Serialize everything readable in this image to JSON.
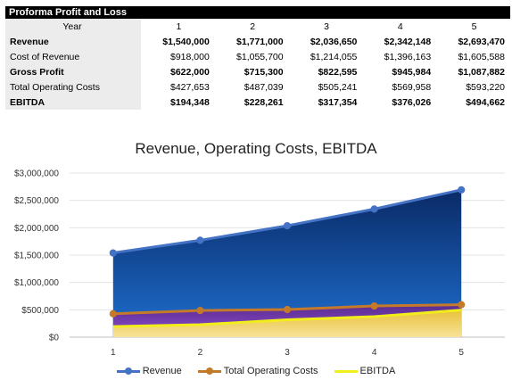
{
  "table": {
    "title": "Proforma Profit and Loss",
    "header_label": "Year",
    "years": [
      "1",
      "2",
      "3",
      "4",
      "5"
    ],
    "rows": [
      {
        "label": "Revenue",
        "bold": true,
        "values": [
          "$1,540,000",
          "$1,771,000",
          "$2,036,650",
          "$2,342,148",
          "$2,693,470"
        ]
      },
      {
        "label": "Cost of Revenue",
        "bold": false,
        "values": [
          "$918,000",
          "$1,055,700",
          "$1,214,055",
          "$1,396,163",
          "$1,605,588"
        ]
      },
      {
        "label": "Gross Profit",
        "bold": true,
        "values": [
          "$622,000",
          "$715,300",
          "$822,595",
          "$945,984",
          "$1,087,882"
        ]
      },
      {
        "label": "Total Operating Costs",
        "bold": false,
        "values": [
          "$427,653",
          "$487,039",
          "$505,241",
          "$569,958",
          "$593,220"
        ]
      },
      {
        "label": "EBITDA",
        "bold": true,
        "values": [
          "$194,348",
          "$228,261",
          "$317,354",
          "$376,026",
          "$494,662"
        ]
      }
    ]
  },
  "chart_data": {
    "type": "area",
    "title": "Revenue, Operating Costs, EBITDA",
    "xlabel": "",
    "ylabel": "",
    "categories": [
      "1",
      "2",
      "3",
      "4",
      "5"
    ],
    "ylim": [
      0,
      3000000
    ],
    "yticks": [
      0,
      500000,
      1000000,
      1500000,
      2000000,
      2500000,
      3000000
    ],
    "ytick_labels": [
      "$0",
      "$500,000",
      "$1,000,000",
      "$1,500,000",
      "$2,000,000",
      "$2,500,000",
      "$3,000,000"
    ],
    "grid": true,
    "legend_position": "bottom",
    "series": [
      {
        "name": "Revenue",
        "values": [
          1540000,
          1771000,
          2036650,
          2342148,
          2693470
        ],
        "line_color": "#4472c4",
        "fill_top": "#0a2a66",
        "fill_bottom": "#1e6fd0",
        "markers": true
      },
      {
        "name": "Total Operating Costs",
        "values": [
          427653,
          487039,
          505241,
          569958,
          593220
        ],
        "line_color": "#c57a2a",
        "fill_top": "#5b2c8f",
        "fill_bottom": "#8e4ed0",
        "markers": true
      },
      {
        "name": "EBITDA",
        "values": [
          194348,
          228261,
          317354,
          376026,
          494662
        ],
        "line_color": "#f2ee1c",
        "fill_top": "#e8c13a",
        "fill_bottom": "#f7e39a",
        "markers": false
      }
    ]
  }
}
